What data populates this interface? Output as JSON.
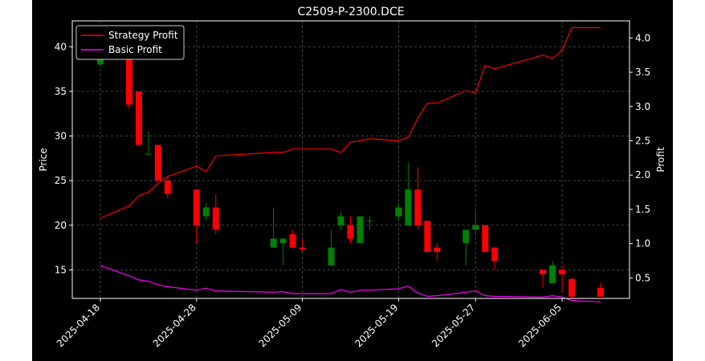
{
  "chart_data": {
    "type": "candlestick+line",
    "title": "C2509-P-2300.DCE",
    "xlabel": "",
    "ylabel_left": "Price",
    "ylabel_right": "Profit",
    "ylim_left": [
      11.8,
      42.9
    ],
    "ylim_right": [
      0.2,
      4.25
    ],
    "yticks_left": [
      "15",
      "20",
      "25",
      "30",
      "35",
      "40"
    ],
    "yticks_right": [
      "0.5",
      "1.0",
      "1.5",
      "2.0",
      "2.5",
      "3.0",
      "3.5",
      "4.0"
    ],
    "xticks": [
      "2025-04-18",
      "2025-04-28",
      "2025-05-09",
      "2025-05-19",
      "2025-05-27",
      "2025-06-05"
    ],
    "grid": true,
    "legend_position": "top-left",
    "colors": {
      "background": "#000000",
      "up": "#008000",
      "down": "#ff0000",
      "strategy": "#ff0000",
      "basic": "#ff00ff",
      "axis": "#ffffff",
      "grid": "#808080",
      "frame": "#ffffff"
    },
    "candles": [
      {
        "date": "2025-04-18",
        "open": 38.0,
        "high": 41.5,
        "low": 38.0,
        "close": 41.5
      },
      {
        "date": "2025-04-21",
        "open": 41.5,
        "high": 42.0,
        "low": 33.0,
        "close": 33.5
      },
      {
        "date": "2025-04-22",
        "open": 35.0,
        "high": 35.0,
        "low": 29.0,
        "close": 29.0
      },
      {
        "date": "2025-04-23",
        "open": 28.0,
        "high": 30.5,
        "low": 28.0,
        "close": 28.0
      },
      {
        "date": "2025-04-24",
        "open": 29.0,
        "high": 29.0,
        "low": 25.0,
        "close": 25.0
      },
      {
        "date": "2025-04-25",
        "open": 25.0,
        "high": 25.5,
        "low": 23.0,
        "close": 23.5
      },
      {
        "date": "2025-04-28",
        "open": 24.0,
        "high": 24.0,
        "low": 18.0,
        "close": 20.0
      },
      {
        "date": "2025-04-29",
        "open": 21.0,
        "high": 22.5,
        "low": 20.5,
        "close": 22.0
      },
      {
        "date": "2025-04-30",
        "open": 22.0,
        "high": 23.5,
        "low": 19.0,
        "close": 19.5
      },
      {
        "date": "2025-05-06",
        "open": 17.5,
        "high": 22.0,
        "low": 17.5,
        "close": 18.5
      },
      {
        "date": "2025-05-07",
        "open": 18.0,
        "high": 18.5,
        "low": 15.5,
        "close": 18.5
      },
      {
        "date": "2025-05-08",
        "open": 19.0,
        "high": 19.5,
        "low": 17.5,
        "close": 17.5
      },
      {
        "date": "2025-05-09",
        "open": 17.5,
        "high": 18.5,
        "low": 17.0,
        "close": 17.3
      },
      {
        "date": "2025-05-12",
        "open": 15.5,
        "high": 19.5,
        "low": 15.5,
        "close": 17.5
      },
      {
        "date": "2025-05-13",
        "open": 20.0,
        "high": 21.5,
        "low": 19.5,
        "close": 21.0
      },
      {
        "date": "2025-05-14",
        "open": 20.0,
        "high": 21.0,
        "low": 18.0,
        "close": 18.5
      },
      {
        "date": "2025-05-15",
        "open": 18.0,
        "high": 21.0,
        "low": 18.0,
        "close": 21.0
      },
      {
        "date": "2025-05-16",
        "open": 20.5,
        "high": 21.0,
        "low": 19.5,
        "close": 20.5
      },
      {
        "date": "2025-05-19",
        "open": 21.0,
        "high": 22.5,
        "low": 20.5,
        "close": 22.0
      },
      {
        "date": "2025-05-20",
        "open": 20.0,
        "high": 27.0,
        "low": 20.0,
        "close": 24.0
      },
      {
        "date": "2025-05-21",
        "open": 24.0,
        "high": 26.5,
        "low": 19.5,
        "close": 20.0
      },
      {
        "date": "2025-05-22",
        "open": 20.5,
        "high": 20.5,
        "low": 17.0,
        "close": 17.0
      },
      {
        "date": "2025-05-23",
        "open": 17.5,
        "high": 18.0,
        "low": 16.0,
        "close": 17.0
      },
      {
        "date": "2025-05-26",
        "open": 18.0,
        "high": 19.5,
        "low": 15.5,
        "close": 19.5
      },
      {
        "date": "2025-05-27",
        "open": 19.5,
        "high": 21.5,
        "low": 19.0,
        "close": 20.0
      },
      {
        "date": "2025-05-28",
        "open": 20.0,
        "high": 20.0,
        "low": 17.0,
        "close": 17.0
      },
      {
        "date": "2025-05-29",
        "open": 17.5,
        "high": 17.5,
        "low": 15.0,
        "close": 16.0
      },
      {
        "date": "2025-06-03",
        "open": 15.0,
        "high": 15.0,
        "low": 13.0,
        "close": 14.5
      },
      {
        "date": "2025-06-04",
        "open": 13.5,
        "high": 16.0,
        "low": 13.5,
        "close": 15.5
      },
      {
        "date": "2025-06-05",
        "open": 15.0,
        "high": 15.5,
        "low": 12.5,
        "close": 14.5
      },
      {
        "date": "2025-06-06",
        "open": 14.0,
        "high": 14.0,
        "low": 11.8,
        "close": 12.0
      },
      {
        "date": "2025-06-09",
        "open": 13.0,
        "high": 13.5,
        "low": 12.0,
        "close": 12.0
      }
    ],
    "series": [
      {
        "name": "Strategy Profit",
        "values": [
          1.37,
          1.55,
          1.7,
          1.75,
          1.88,
          1.98,
          2.13,
          2.05,
          2.28,
          2.33,
          2.33,
          2.38,
          2.38,
          2.38,
          2.33,
          2.48,
          2.5,
          2.53,
          2.5,
          2.55,
          2.83,
          3.05,
          3.05,
          3.23,
          3.2,
          3.6,
          3.55,
          3.75,
          3.7,
          3.82,
          4.15,
          4.15
        ]
      },
      {
        "name": "Basic Profit",
        "values": [
          0.68,
          0.53,
          0.47,
          0.45,
          0.4,
          0.37,
          0.32,
          0.35,
          0.31,
          0.29,
          0.3,
          0.27,
          0.27,
          0.27,
          0.33,
          0.29,
          0.32,
          0.32,
          0.34,
          0.38,
          0.28,
          0.23,
          0.24,
          0.29,
          0.31,
          0.24,
          0.23,
          0.22,
          0.24,
          0.22,
          0.17,
          0.15
        ]
      }
    ]
  }
}
